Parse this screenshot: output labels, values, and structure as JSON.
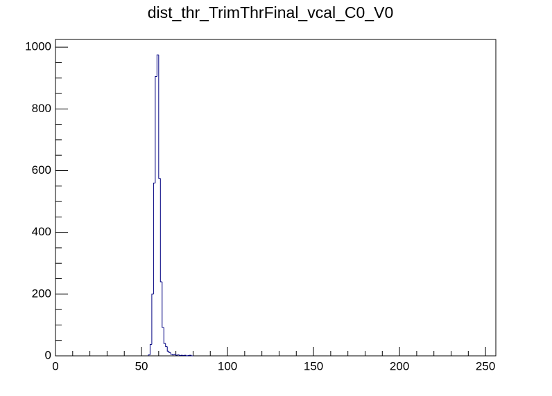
{
  "chart_data": {
    "type": "histogram",
    "title": "dist_thr_TrimThrFinal_vcal_C0_V0",
    "bins": [
      54,
      55,
      56,
      57,
      58,
      59,
      60,
      61,
      62,
      63,
      64,
      65,
      66,
      67,
      68,
      69,
      70,
      71,
      72,
      73,
      74,
      75,
      76,
      77,
      78,
      79,
      80
    ],
    "counts": [
      3,
      37,
      200,
      560,
      905,
      975,
      575,
      240,
      92,
      40,
      30,
      15,
      10,
      5,
      3,
      5,
      2,
      3,
      1,
      2,
      1,
      2,
      0,
      1,
      2,
      0
    ],
    "color": "#000080",
    "xlim": [
      0,
      256
    ],
    "xticks": [
      0,
      50,
      100,
      150,
      200,
      250
    ],
    "ylim": [
      0,
      1025
    ],
    "yticks": [
      0,
      200,
      400,
      600,
      800,
      1000
    ]
  }
}
